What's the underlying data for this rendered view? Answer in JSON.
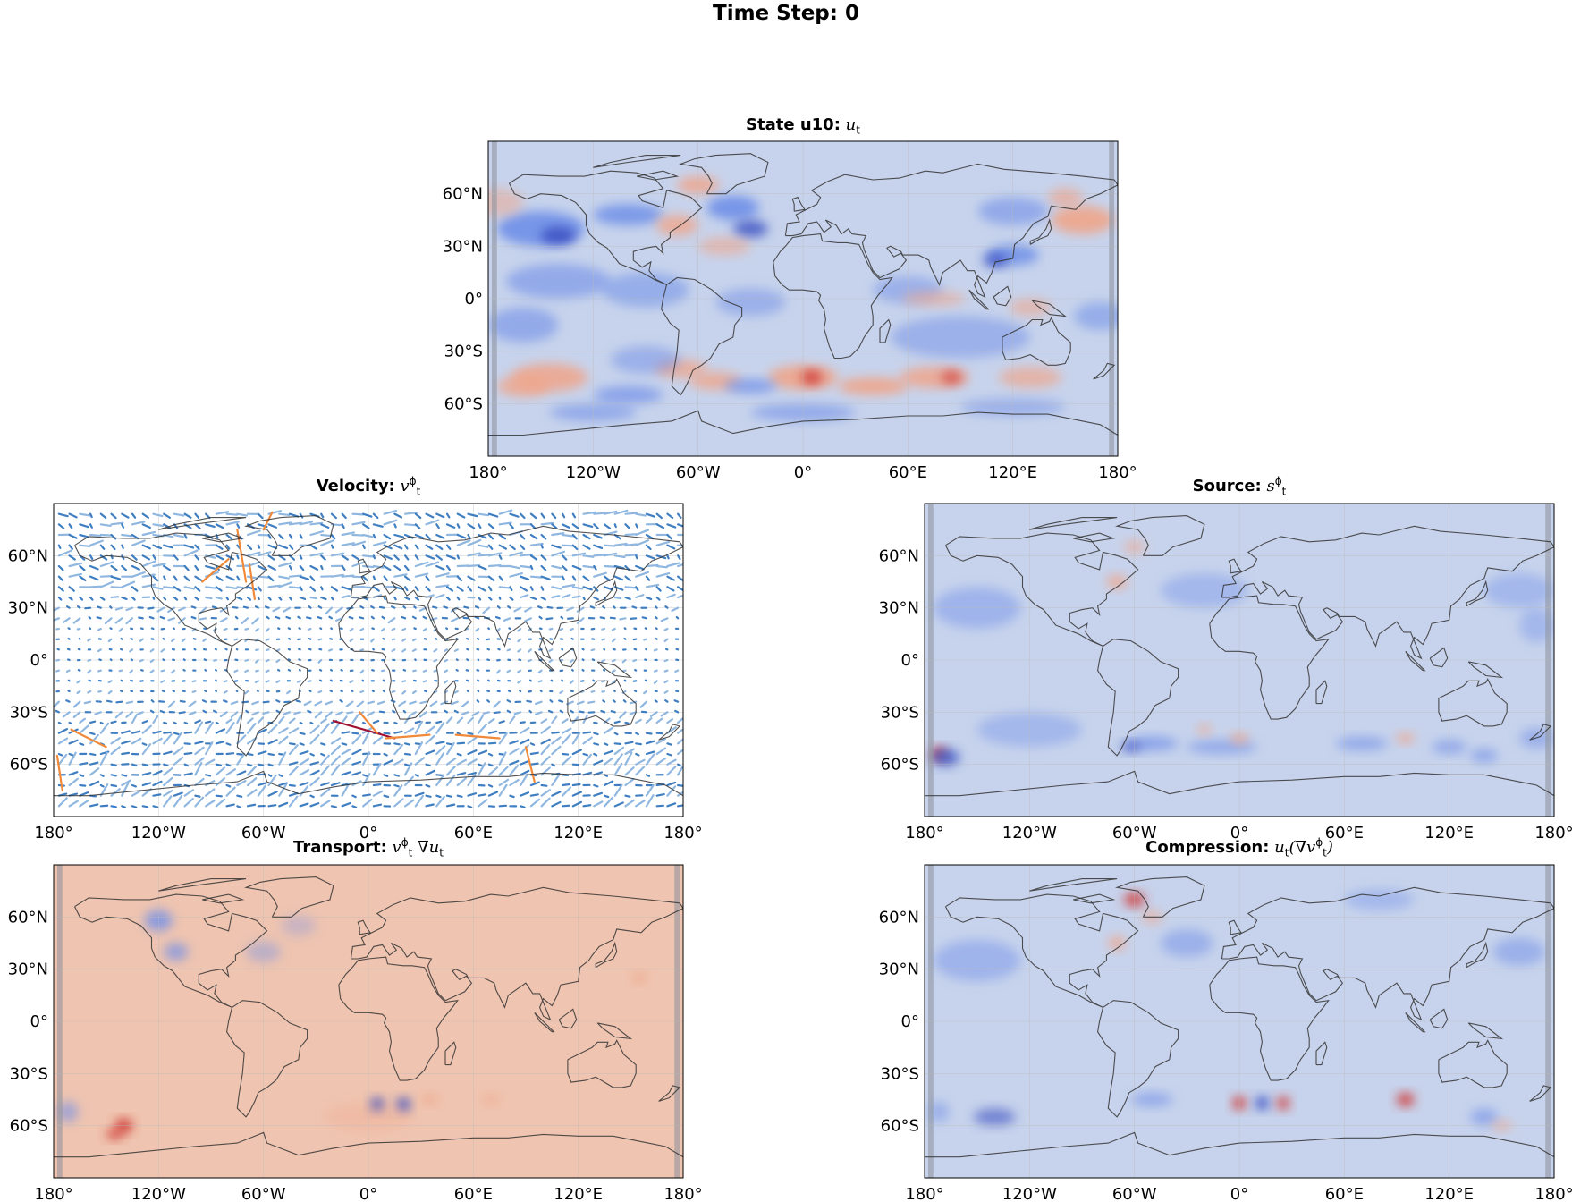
{
  "figure": {
    "suptitle": "Time Step: 0"
  },
  "panels": [
    {
      "id": "state",
      "title_bold": "State u10:",
      "title_math": "u",
      "title_sub": "t",
      "title_sup": "",
      "title_tail": "",
      "type": "filled-contour-map"
    },
    {
      "id": "velocity",
      "title_bold": "Velocity:",
      "title_math": "v",
      "title_sub": "t",
      "title_sup": "ϕ",
      "title_tail": "",
      "type": "quiver-map"
    },
    {
      "id": "source",
      "title_bold": "Source:",
      "title_math": "s",
      "title_sub": "t",
      "title_sup": "ϕ",
      "title_tail": "",
      "type": "filled-contour-map"
    },
    {
      "id": "transport",
      "title_bold": "Transport:",
      "title_math": "v",
      "title_sub": "t",
      "title_sup": "ϕ",
      "title_tail": " ∇u",
      "title_tail_sub": "t",
      "type": "filled-contour-map"
    },
    {
      "id": "compression",
      "title_bold": "Compression:",
      "title_math": "u",
      "title_sub": "t",
      "title_sup": "",
      "title_tail": "(∇v",
      "title_tail_sub": "t",
      "title_tail_sup": "ϕ",
      "title_close": ")",
      "type": "filled-contour-map"
    }
  ],
  "chart_data": {
    "type": "heatmap",
    "projection": "PlateCarree",
    "xlim": [
      -180,
      180
    ],
    "ylim": [
      -90,
      90
    ],
    "x_ticks": [
      -180,
      -120,
      -60,
      0,
      60,
      120,
      180
    ],
    "x_tick_labels": [
      "180°",
      "120°W",
      "60°W",
      "0°",
      "60°E",
      "120°E",
      "180°"
    ],
    "y_ticks": [
      60,
      30,
      0,
      -30,
      -60
    ],
    "y_tick_labels": [
      "60°N",
      "30°N",
      "0°",
      "30°S",
      "60°S"
    ],
    "colormap": "coolwarm",
    "grid": true,
    "colors": {
      "neutral": "#c7d3ec",
      "cool": "#6f8fe8",
      "cool_strong": "#3a4fc2",
      "warm": "#f0a58a",
      "warm_strong": "#cf3a36",
      "transport_bg": "#efc4b0",
      "arrow_blue": "#3f7ec1",
      "arrow_orange": "#f08a3a",
      "arrow_red": "#a01030",
      "coast": "#333333",
      "grid": "#bbbbbb"
    }
  }
}
